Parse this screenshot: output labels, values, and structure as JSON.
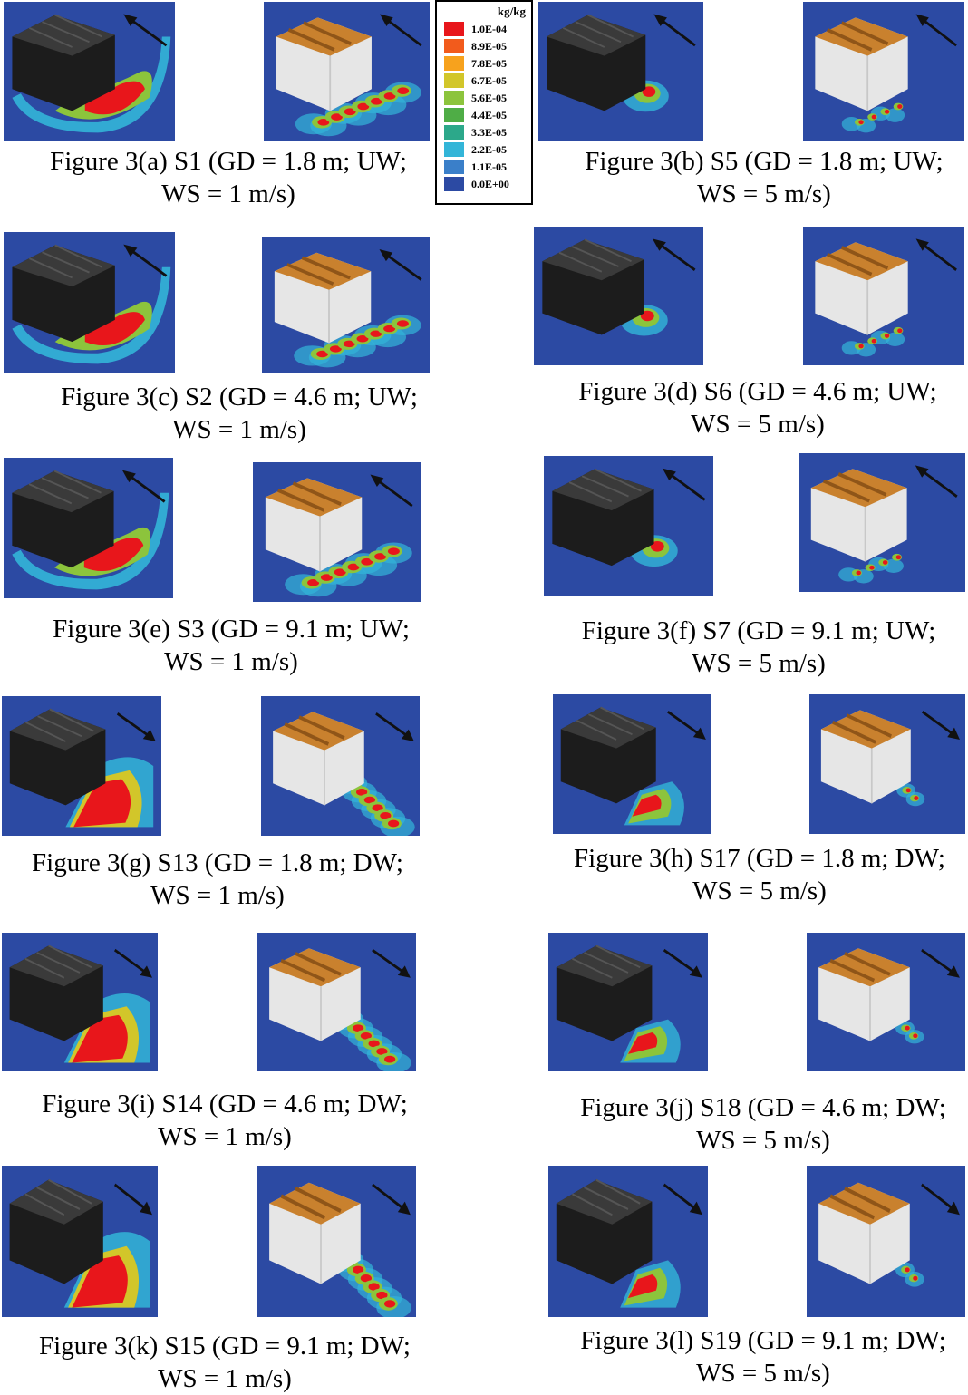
{
  "legend": {
    "unit": "kg/kg",
    "levels": [
      "1.0E-04",
      "8.9E-05",
      "7.8E-05",
      "6.7E-05",
      "5.6E-05",
      "4.4E-05",
      "3.3E-05",
      "2.2E-05",
      "1.1E-05",
      "0.0E+00"
    ],
    "colors": [
      "#e8161b",
      "#f25b1c",
      "#f7a21d",
      "#d2c62a",
      "#8cc43c",
      "#4fad46",
      "#2ca88a",
      "#33b5d8",
      "#3a7fc9",
      "#2c4aa3"
    ]
  },
  "figures": [
    {
      "id": "a",
      "line1": "Figure 3(a) S1 (GD = 1.8 m; UW;",
      "line2": "WS = 1 m/s)",
      "wind": "UW",
      "speed": 1
    },
    {
      "id": "b",
      "line1": "Figure 3(b) S5 (GD = 1.8 m; UW;",
      "line2": "WS = 5 m/s)",
      "wind": "UW",
      "speed": 5
    },
    {
      "id": "c",
      "line1": "Figure 3(c) S2 (GD = 4.6 m; UW;",
      "line2": "WS = 1 m/s)",
      "wind": "UW",
      "speed": 1
    },
    {
      "id": "d",
      "line1": "Figure 3(d) S6 (GD = 4.6 m; UW;",
      "line2": "WS = 5 m/s)",
      "wind": "UW",
      "speed": 5
    },
    {
      "id": "e",
      "line1": "Figure 3(e) S3 (GD = 9.1 m; UW;",
      "line2": "WS = 1 m/s)",
      "wind": "UW",
      "speed": 1
    },
    {
      "id": "f",
      "line1": "Figure 3(f) S7 (GD = 9.1 m; UW;",
      "line2": "WS = 5 m/s)",
      "wind": "UW",
      "speed": 5
    },
    {
      "id": "g",
      "line1": "Figure 3(g) S13 (GD = 1.8 m; DW;",
      "line2": "WS = 1 m/s)",
      "wind": "DW",
      "speed": 1
    },
    {
      "id": "h",
      "line1": "Figure 3(h) S17 (GD = 1.8 m; DW;",
      "line2": "WS = 5 m/s)",
      "wind": "DW",
      "speed": 5
    },
    {
      "id": "i",
      "line1": "Figure 3(i) S14 (GD = 4.6 m; DW;",
      "line2": "WS = 1 m/s)",
      "wind": "DW",
      "speed": 1
    },
    {
      "id": "j",
      "line1": "Figure 3(j) S18 (GD = 4.6 m; DW;",
      "line2": "WS = 5 m/s)",
      "wind": "DW",
      "speed": 5
    },
    {
      "id": "k",
      "line1": "Figure 3(k) S15 (GD = 9.1 m; DW;",
      "line2": "WS = 1 m/s)",
      "wind": "DW",
      "speed": 1
    },
    {
      "id": "l",
      "line1": "Figure 3(l) S19 (GD = 9.1 m; DW;",
      "line2": "WS = 5 m/s)",
      "wind": "DW",
      "speed": 5
    }
  ],
  "colors": {
    "background_blue": "#2c4aa3",
    "building_dark": "#2a2a2a",
    "building_white": "#e6e6e6",
    "roof_orange": "#c9812e"
  }
}
